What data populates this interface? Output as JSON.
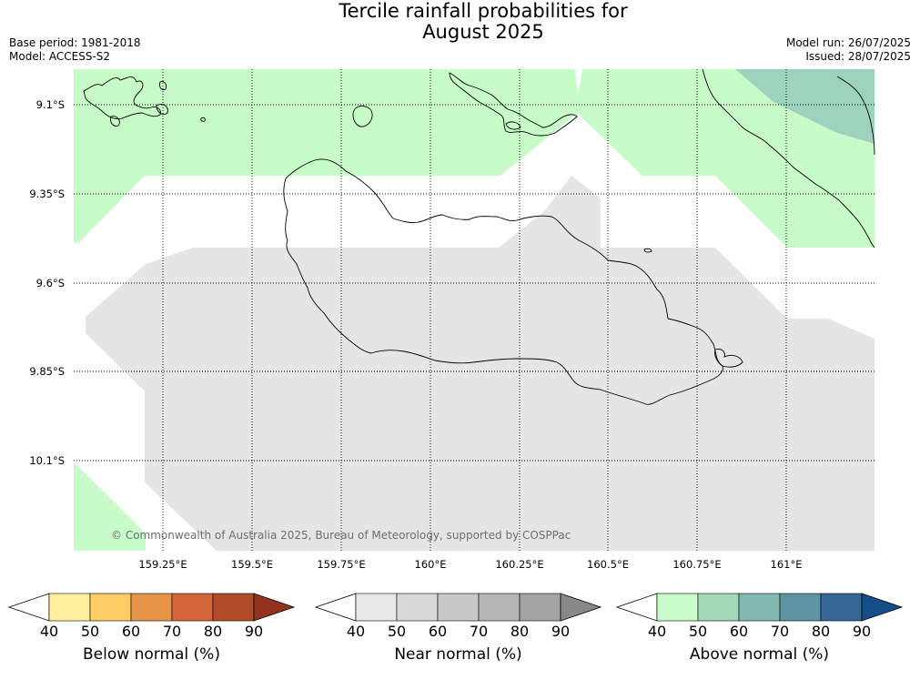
{
  "title": {
    "line1": "Tercile rainfall probabilities for",
    "line2": "August 2025"
  },
  "meta": {
    "base_period": "Base period: 1981-2018",
    "model": "Model: ACCESS-S2",
    "model_run": "Model run: 26/07/2025",
    "issued": "Issued: 28/07/2025"
  },
  "map": {
    "lat_labels": [
      "9.1°S",
      "9.35°S",
      "9.6°S",
      "9.85°S",
      "10.1°S"
    ],
    "lon_labels": [
      "159.25°E",
      "159.5°E",
      "159.75°E",
      "160°E",
      "160.25°E",
      "160.5°E",
      "160.75°E",
      "161°E"
    ],
    "copyright": "© Commonwealth of Australia 2025, Bureau of Meteorology, supported by COSPPac"
  },
  "colors": {
    "above_40": "#c7fcc8",
    "above_60": "#9dd3be",
    "near_40": "#e5e5e5",
    "coast": "#000000"
  },
  "colorbars": [
    {
      "label": "Below normal (%)",
      "ticks": [
        "40",
        "50",
        "60",
        "70",
        "80",
        "90"
      ],
      "colors": [
        "#fff0a0",
        "#ffcc66",
        "#e59448",
        "#d2663a",
        "#b04c2a",
        "#943220"
      ]
    },
    {
      "label": "Near normal (%)",
      "ticks": [
        "40",
        "50",
        "60",
        "70",
        "80",
        "90"
      ],
      "colors": [
        "#e8e8e8",
        "#d8d8d8",
        "#c8c8c8",
        "#b6b6b6",
        "#a4a4a4",
        "#888888"
      ]
    },
    {
      "label": "Above normal (%)",
      "ticks": [
        "40",
        "50",
        "60",
        "70",
        "80",
        "90"
      ],
      "colors": [
        "#c9fccb",
        "#a4d9b8",
        "#82b8b0",
        "#5e94a2",
        "#346696",
        "#144e88"
      ]
    }
  ]
}
